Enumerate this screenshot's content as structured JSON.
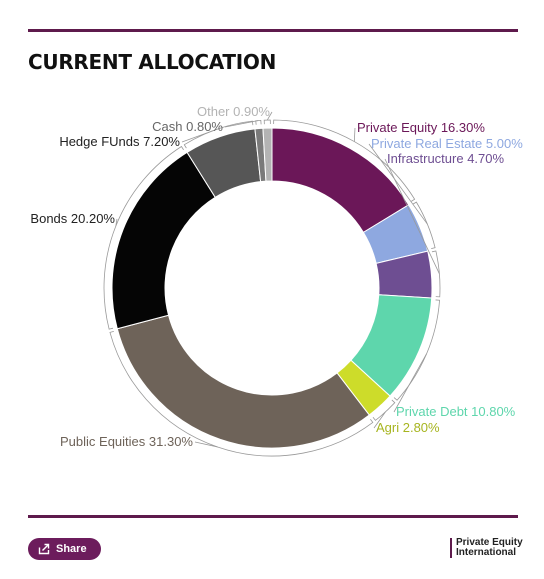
{
  "header": {
    "title": "CURRENT ALLOCATION"
  },
  "chart_data": {
    "type": "pie",
    "variant": "donut",
    "title": "CURRENT ALLOCATION",
    "slices": [
      {
        "name": "Private Equity",
        "value": 16.3,
        "label": "Private Equity 16.30%",
        "color": "#6b1758"
      },
      {
        "name": "Private Real Estate",
        "value": 5.0,
        "label": "Private Real Estate 5.00%",
        "color": "#8ea8e0"
      },
      {
        "name": "Infrastructure",
        "value": 4.7,
        "label": "Infrastructure 4.70%",
        "color": "#6e4e92"
      },
      {
        "name": "Private Debt",
        "value": 10.8,
        "label": "Private Debt 10.80%",
        "color": "#5ed6ac"
      },
      {
        "name": "Agri",
        "value": 2.8,
        "label": "Agri 2.80%",
        "color": "#cddc2a"
      },
      {
        "name": "Public Equities",
        "value": 31.3,
        "label": "Public Equities 31.30%",
        "color": "#6e6359"
      },
      {
        "name": "Bonds",
        "value": 20.2,
        "label": "Bonds 20.20%",
        "color": "#050505"
      },
      {
        "name": "Hedge FUnds",
        "value": 7.2,
        "label": "Hedge FUnds 7.20%",
        "color": "#565656"
      },
      {
        "name": "Cash",
        "value": 0.8,
        "label": "Cash 0.80%",
        "color": "#7a7a7a"
      },
      {
        "name": "Other",
        "value": 0.9,
        "label": "Other 0.90%",
        "color": "#b3b3b3"
      }
    ],
    "legend": "none"
  },
  "footer": {
    "share_label": "Share",
    "share_icon": "share-icon",
    "brand_line1": "Private Equity",
    "brand_line2": "International"
  }
}
